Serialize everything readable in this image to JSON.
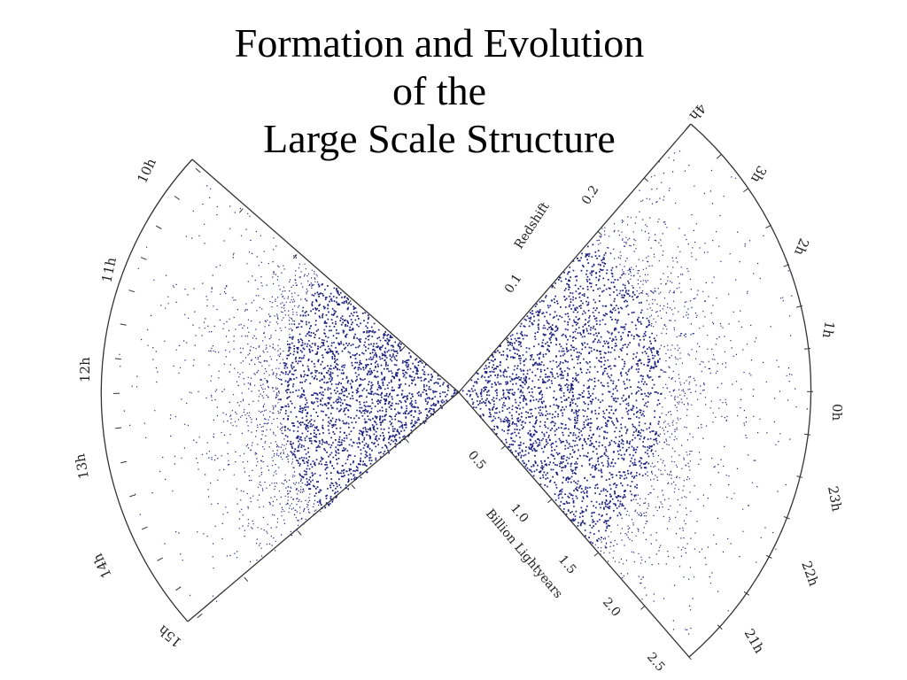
{
  "slide": {
    "title_lines": [
      "Formation and Evolution",
      "of the",
      "Large Scale Structure"
    ]
  },
  "diagram": {
    "point_color": "#1b1f7e",
    "axis_color": "#333333",
    "left_wedge_hour_labels": [
      "10h",
      "11h",
      "12h",
      "13h",
      "14h",
      "15h"
    ],
    "right_wedge_hour_labels": [
      "4h",
      "3h",
      "2h",
      "1h",
      "0h",
      "23h",
      "22h",
      "21h"
    ],
    "redshift": {
      "axis_label": "Redshift",
      "tick_labels": [
        "0.1",
        "0.2"
      ]
    },
    "distance": {
      "axis_label": "Billion Lightyears",
      "tick_labels": [
        "0.5",
        "1.0",
        "1.5",
        "2.0",
        "2.5"
      ]
    }
  }
}
